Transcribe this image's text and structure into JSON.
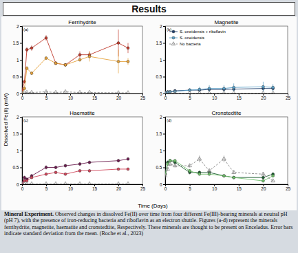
{
  "header": "Results",
  "figure": {
    "y_label": "Dissolved Fe(II) (mM)",
    "x_label": "Time (Days)"
  },
  "caption": {
    "lead": "Mineral Experiment.",
    "text": "Observed changes in dissolved Fe(II) over time from four different Fe(III)-bearing minerals at neutral pH (pH 7), with the presence of iron-reducing bacteria and riboflavin as an electron shuttle. Figures (a-d) represent the minerals ferrihydrite, magnetite, haematite and cronstedtite, Respectively. These minerals are thought to be present on Enceladus. Error bars indicate standard deviation from the mean. (Roche et al., 2023)"
  },
  "chart_data": [
    {
      "type": "line",
      "panel": "(a)",
      "title": "Ferrihydrite",
      "x": [
        0,
        0.5,
        1,
        2,
        5,
        7,
        9,
        12,
        14,
        20,
        22
      ],
      "xlim": [
        0,
        25
      ],
      "xticks": [
        0,
        5,
        10,
        15,
        20,
        25
      ],
      "ylim": [
        0,
        2
      ],
      "yticks": [
        0,
        0.5,
        1,
        1.5,
        2
      ],
      "series": [
        {
          "color": "#c0392b",
          "marker": "circle",
          "line_style": "solid",
          "values": [
            0.1,
            0.35,
            1.3,
            1.35,
            1.65,
            0.9,
            0.85,
            1.15,
            1.15,
            1.5,
            1.35
          ],
          "errors": [
            0.02,
            0.05,
            0.08,
            0.08,
            0.08,
            0.05,
            0.05,
            0.1,
            0.1,
            0.4,
            0.15
          ]
        },
        {
          "color": "#e5a23a",
          "marker": "circle",
          "line_style": "solid",
          "values": [
            0,
            0.15,
            0.75,
            0.6,
            1.05,
            0.9,
            0.85,
            1.0,
            1.1,
            0.95,
            0.95
          ],
          "errors": [
            0.01,
            0.03,
            0.06,
            0.05,
            0.05,
            0.05,
            0.05,
            0.05,
            0.15,
            0.35,
            0.1
          ]
        },
        {
          "color": "#888888",
          "marker": "triangle",
          "line_style": "dashed",
          "values": [
            0,
            0.02,
            0.03,
            0.03,
            0.05,
            0.03,
            0.05,
            0.03,
            0.03,
            0.02,
            0.02
          ],
          "errors": [
            0,
            0.01,
            0.01,
            0.01,
            0.02,
            0.01,
            0.02,
            0.01,
            0.01,
            0.01,
            0.01
          ]
        }
      ]
    },
    {
      "type": "line",
      "panel": "(b)",
      "title": "Magnetite",
      "legend": "upper left",
      "x": [
        0,
        0.5,
        1,
        2,
        5,
        7,
        9,
        12,
        14,
        20,
        22
      ],
      "xlim": [
        0,
        25
      ],
      "xticks": [
        0,
        5,
        10,
        15,
        20,
        25
      ],
      "ylim": [
        0,
        2
      ],
      "yticks": [
        0,
        0.5,
        1,
        1.5,
        2
      ],
      "series": [
        {
          "name": "S. oneidensis + riboflavin",
          "color": "#1f3f6e",
          "marker": "circle",
          "line_style": "solid",
          "values": [
            0.03,
            0.05,
            0.05,
            0.08,
            0.1,
            0.1,
            0.12,
            0.12,
            0.13,
            0.15,
            0.15
          ],
          "errors": [
            0.01,
            0.02,
            0.02,
            0.03,
            0.05,
            0.05,
            0.06,
            0.05,
            0.06,
            0.08,
            0.08
          ]
        },
        {
          "name": "S. oneidensis",
          "color": "#5aa0c8",
          "marker": "circle",
          "line_style": "solid",
          "values": [
            0.02,
            0.04,
            0.05,
            0.06,
            0.1,
            0.12,
            0.15,
            0.15,
            0.18,
            0.2,
            0.18
          ],
          "errors": [
            0.01,
            0.02,
            0.02,
            0.03,
            0.05,
            0.08,
            0.1,
            0.1,
            0.12,
            0.15,
            0.1
          ]
        },
        {
          "name": "No bacteria",
          "color": "#888888",
          "marker": "triangle",
          "line_style": "dashed",
          "values": [
            0,
            0,
            0.01,
            0.01,
            0.01,
            0.01,
            0.01,
            0.01,
            0.01,
            0.01,
            0.01
          ],
          "errors": [
            0,
            0,
            0.01,
            0.01,
            0.01,
            0.01,
            0.01,
            0.01,
            0.01,
            0.01,
            0.01
          ]
        }
      ]
    },
    {
      "type": "line",
      "panel": "(c)",
      "title": "Haematite",
      "x": [
        0,
        0.5,
        1,
        2,
        5,
        7,
        9,
        12,
        14,
        20,
        22
      ],
      "xlim": [
        0,
        25
      ],
      "xticks": [
        0,
        5,
        10,
        15,
        20,
        25
      ],
      "ylim": [
        0,
        2
      ],
      "yticks": [
        0,
        0.5,
        1,
        1.5,
        2
      ],
      "series": [
        {
          "color": "#6b1d4f",
          "marker": "circle",
          "line_style": "solid",
          "values": [
            0.05,
            0.2,
            0.15,
            0.25,
            0.5,
            0.5,
            0.55,
            0.6,
            0.65,
            0.7,
            0.75
          ],
          "errors": [
            0.01,
            0.05,
            0.05,
            0.05,
            0.06,
            0.05,
            0.05,
            0.05,
            0.05,
            0.05,
            0.04
          ]
        },
        {
          "color": "#d0455a",
          "marker": "circle",
          "line_style": "solid",
          "values": [
            0,
            0.1,
            0.1,
            0.2,
            0.3,
            0.35,
            0.3,
            0.4,
            0.4,
            0.45,
            0.45
          ],
          "errors": [
            0.01,
            0.03,
            0.03,
            0.04,
            0.04,
            0.04,
            0.04,
            0.04,
            0.04,
            0.04,
            0.04
          ]
        },
        {
          "color": "#888888",
          "marker": "triangle",
          "line_style": "dashed",
          "values": [
            0,
            0,
            0.01,
            0.01,
            0.01,
            0.01,
            0.01,
            0.01,
            0.01,
            0.01,
            0.01
          ],
          "errors": [
            0,
            0,
            0.01,
            0.01,
            0.01,
            0.01,
            0.01,
            0.01,
            0.01,
            0.01,
            0.01
          ]
        }
      ]
    },
    {
      "type": "line",
      "panel": "(d)",
      "title": "Cronstedtite",
      "x": [
        0,
        0.5,
        1,
        2,
        5,
        7,
        9,
        12,
        14,
        20,
        22
      ],
      "xlim": [
        0,
        25
      ],
      "xticks": [
        0,
        5,
        10,
        15,
        20,
        25
      ],
      "ylim": [
        0,
        2
      ],
      "yticks": [
        0,
        0.5,
        1,
        1.5,
        2
      ],
      "series": [
        {
          "color": "#1e5e32",
          "marker": "circle",
          "line_style": "solid",
          "values": [
            0.3,
            0.65,
            0.7,
            0.65,
            0.35,
            0.35,
            0.35,
            0.25,
            0.2,
            0.2,
            0.3
          ],
          "errors": [
            0.03,
            0.05,
            0.05,
            0.05,
            0.05,
            0.05,
            0.05,
            0.04,
            0.04,
            0.04,
            0.04
          ]
        },
        {
          "color": "#6fbf6a",
          "marker": "circle",
          "line_style": "solid",
          "values": [
            0.3,
            0.6,
            0.7,
            0.7,
            0.4,
            0.3,
            0.3,
            0.25,
            0.2,
            0.1,
            0.25
          ],
          "errors": [
            0.03,
            0.05,
            0.05,
            0.05,
            0.05,
            0.04,
            0.04,
            0.04,
            0.04,
            0.04,
            0.04
          ]
        },
        {
          "color": "#888888",
          "marker": "triangle",
          "line_style": "dashed",
          "values": [
            0.25,
            0.45,
            0.6,
            0.55,
            0.55,
            0.75,
            0.4,
            0.75,
            0.35,
            0.3,
            0.1
          ],
          "errors": [
            0.03,
            0.05,
            0.05,
            0.05,
            0.05,
            0.1,
            0.05,
            0.1,
            0.05,
            0.05,
            0.03
          ]
        }
      ]
    }
  ]
}
